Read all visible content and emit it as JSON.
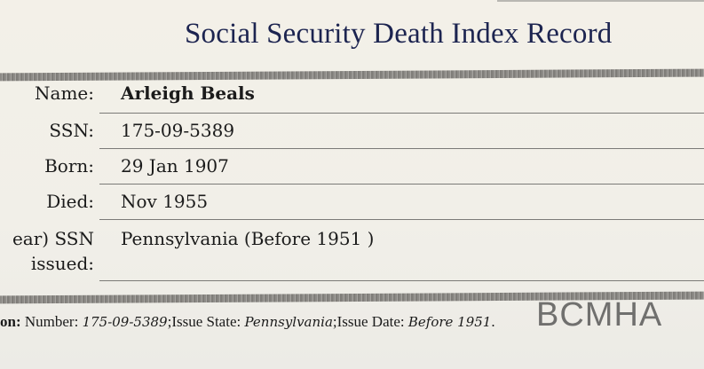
{
  "title": "Social Security Death Index Record",
  "fields": [
    {
      "label": "Name:",
      "value": "Arleigh Beals"
    },
    {
      "label": "SSN:",
      "value": "175-09-5389"
    },
    {
      "label": "Born:",
      "value": "29 Jan 1907"
    },
    {
      "label": "Died:",
      "value": "Nov 1955"
    },
    {
      "label": "ear) SSN",
      "label2": "issued:",
      "value": "Pennsylvania (Before 1951 )"
    }
  ],
  "footer": {
    "label": "on:",
    "number_label": "Number:",
    "number": "175-09-5389",
    "state_label": ";Issue State:",
    "state": "Pennsylvania",
    "date_label": ";Issue Date:",
    "date": "Before 1951",
    "end": "."
  },
  "watermark": "BCMHA",
  "colors": {
    "title": "#1c2450",
    "band": "#8d8b87"
  }
}
